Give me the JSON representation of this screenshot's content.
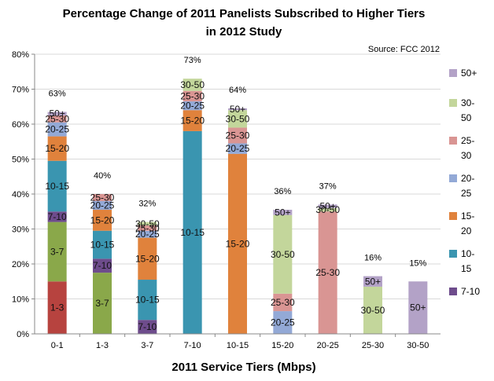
{
  "chart_data": {
    "type": "bar",
    "stacked": true,
    "title_lines": [
      "Percentage Change of 2011 Panelists Subscribed to Higher Tiers",
      "in 2012 Study"
    ],
    "source": "Source: FCC 2012",
    "xlabel": "2011 Service Tiers (Mbps)",
    "ylabel": "",
    "ylim": [
      0,
      80
    ],
    "yticks": [
      "0%",
      "10%",
      "20%",
      "30%",
      "40%",
      "50%",
      "60%",
      "70%",
      "80%"
    ],
    "grid": true,
    "legend_position": "right",
    "categories": [
      "0-1",
      "1-3",
      "3-7",
      "7-10",
      "10-15",
      "15-20",
      "20-25",
      "25-30",
      "30-50"
    ],
    "totals": [
      "63%",
      "40%",
      "32%",
      "73%",
      "64%",
      "36%",
      "37%",
      "16%",
      "15%"
    ],
    "series": [
      {
        "name": "1-3",
        "color": "#b7433f",
        "values": [
          15,
          0,
          0,
          0,
          0,
          0,
          0,
          0,
          0
        ]
      },
      {
        "name": "3-7",
        "color": "#8aa84a",
        "values": [
          17,
          17.5,
          0,
          0,
          0,
          0,
          0,
          0,
          0
        ]
      },
      {
        "name": "7-10",
        "color": "#6e4c8c",
        "values": [
          3,
          4,
          4,
          0,
          0,
          0,
          0,
          0,
          0
        ]
      },
      {
        "name": "10-15",
        "color": "#3a95b0",
        "values": [
          14.5,
          8,
          11.5,
          58,
          0,
          0,
          0,
          0,
          0
        ]
      },
      {
        "name": "15-20",
        "color": "#e0823c",
        "values": [
          7,
          6,
          12,
          6,
          51.5,
          0,
          0,
          0,
          0
        ]
      },
      {
        "name": "20-25",
        "color": "#93a9d6",
        "values": [
          4,
          2.5,
          2,
          2.5,
          3,
          6.5,
          0,
          0,
          0
        ]
      },
      {
        "name": "25-30",
        "color": "#d99593",
        "values": [
          2,
          2,
          1.5,
          3,
          4.5,
          5,
          35,
          0,
          0
        ]
      },
      {
        "name": "30-50",
        "color": "#c3d69b",
        "values": [
          0,
          0,
          1,
          3.5,
          5,
          22.5,
          1,
          13.5,
          0
        ]
      },
      {
        "name": "50+",
        "color": "#b3a2c7",
        "values": [
          1,
          0,
          0,
          0,
          0.5,
          1.5,
          1,
          3,
          15
        ]
      }
    ],
    "segment_labels": [
      [
        [
          "1-3",
          0
        ],
        [
          "3-7",
          1
        ],
        [
          "7-10",
          2
        ],
        [
          "10-15",
          3
        ],
        [
          "15-20",
          4
        ],
        [
          "20-25",
          5
        ],
        [
          "25-30",
          6
        ],
        [
          "50+",
          8
        ]
      ],
      [
        [
          "3-7",
          1
        ],
        [
          "7-10",
          2
        ],
        [
          "10-15",
          3
        ],
        [
          "15-20",
          4
        ],
        [
          "20-25",
          5
        ],
        [
          "25-30",
          6
        ]
      ],
      [
        [
          "7-10",
          2
        ],
        [
          "10-15",
          3
        ],
        [
          "15-20",
          4
        ],
        [
          "20-25",
          5
        ],
        [
          "25-30",
          6
        ],
        [
          "30-50",
          7
        ]
      ],
      [
        [
          "10-15",
          3
        ],
        [
          "15-20",
          4
        ],
        [
          "20-25",
          5
        ],
        [
          "25-30",
          6
        ],
        [
          "30-50",
          7
        ]
      ],
      [
        [
          "15-20",
          4
        ],
        [
          "20-25",
          5
        ],
        [
          "25-30",
          6
        ],
        [
          "30-50",
          7
        ],
        [
          "50+",
          8
        ]
      ],
      [
        [
          "20-25",
          5
        ],
        [
          "25-30",
          6
        ],
        [
          "30-50",
          7
        ],
        [
          "50+",
          8
        ]
      ],
      [
        [
          "25-30",
          6
        ],
        [
          "30-50",
          7
        ],
        [
          "50+",
          8
        ]
      ],
      [
        [
          "30-50",
          7
        ],
        [
          "50+",
          8
        ]
      ],
      [
        [
          "50+",
          8
        ]
      ]
    ],
    "legend": [
      {
        "lines": [
          "50+"
        ],
        "color": "#b3a2c7"
      },
      {
        "lines": [
          "30-",
          "50"
        ],
        "color": "#c3d69b"
      },
      {
        "lines": [
          "25-",
          "30"
        ],
        "color": "#d99593"
      },
      {
        "lines": [
          "20-",
          "25"
        ],
        "color": "#93a9d6"
      },
      {
        "lines": [
          "15-",
          "20"
        ],
        "color": "#e0823c"
      },
      {
        "lines": [
          "10-",
          "15"
        ],
        "color": "#3a95b0"
      },
      {
        "lines": [
          "7-10"
        ],
        "color": "#6e4c8c"
      }
    ]
  }
}
